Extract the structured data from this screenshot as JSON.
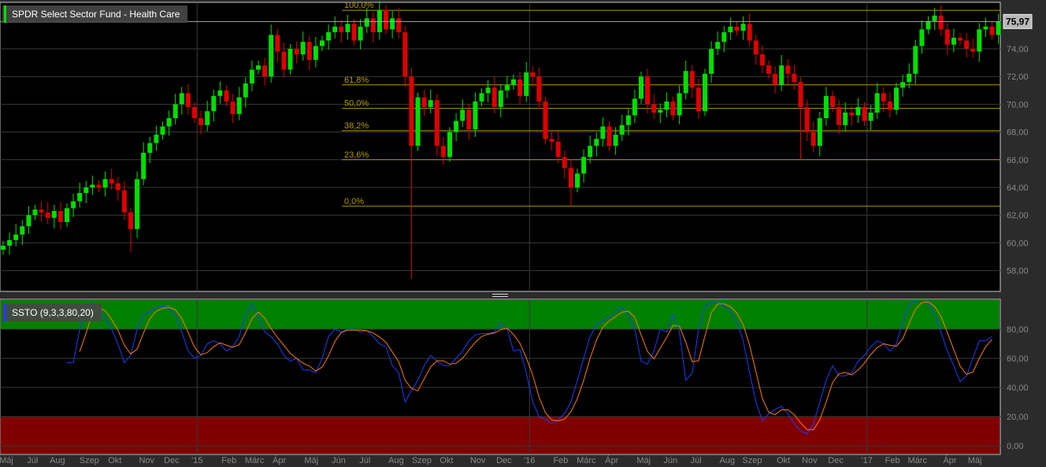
{
  "colors": {
    "up": "#00e000",
    "down": "#e00000",
    "k_line": "#1a3cff",
    "d_line": "#ff7a00",
    "overbought_zone": "#008000",
    "oversold_zone": "#800000",
    "fib": "#b39a00",
    "grid": "#3a3a3a",
    "axis_text": "#8a8a8a"
  },
  "price_panel": {
    "title": "SPDR Select Sector Fund - Health Care",
    "last_price_label": "75,97",
    "last_price": 75.97,
    "y_ticks": [
      {
        "v": 58,
        "label": "58,00"
      },
      {
        "v": 60,
        "label": "60,00"
      },
      {
        "v": 62,
        "label": "62,00"
      },
      {
        "v": 64,
        "label": "64,00"
      },
      {
        "v": 66,
        "label": "66,00"
      },
      {
        "v": 68,
        "label": "68,00"
      },
      {
        "v": 70,
        "label": "70,00"
      },
      {
        "v": 72,
        "label": "72,00"
      },
      {
        "v": 74,
        "label": "74,00"
      }
    ],
    "fib_levels": [
      {
        "label": "100,0%",
        "v": 76.78
      },
      {
        "label": "61,8%",
        "v": 71.4
      },
      {
        "label": "50,0%",
        "v": 69.7
      },
      {
        "label": "38,2%",
        "v": 68.1
      },
      {
        "label": "23,6%",
        "v": 66.0
      },
      {
        "label": "0,0%",
        "v": 62.64
      }
    ]
  },
  "oscillator_panel": {
    "title": "SSTO (9,3,3,80,20)",
    "y_ticks": [
      {
        "v": 0,
        "label": "0,00"
      },
      {
        "v": 20,
        "label": "20,00"
      },
      {
        "v": 40,
        "label": "40,00"
      },
      {
        "v": 60,
        "label": "60,00"
      },
      {
        "v": 80,
        "label": "80,00"
      }
    ],
    "overbought": 80,
    "oversold": 20
  },
  "x_axis": {
    "labels": [
      {
        "i": 0.5,
        "t": "Máj"
      },
      {
        "i": 4.6,
        "t": "Júl"
      },
      {
        "i": 8.5,
        "t": "Aug"
      },
      {
        "i": 13.5,
        "t": "Szep"
      },
      {
        "i": 17.5,
        "t": "Okt"
      },
      {
        "i": 22.5,
        "t": "Nov"
      },
      {
        "i": 26.4,
        "t": "Dec"
      },
      {
        "i": 30.4,
        "t": "'15"
      },
      {
        "i": 35.4,
        "t": "Feb"
      },
      {
        "i": 39.4,
        "t": "Márc"
      },
      {
        "i": 43.3,
        "t": "Ápr"
      },
      {
        "i": 48.3,
        "t": "Máj"
      },
      {
        "i": 52.6,
        "t": "Jún"
      },
      {
        "i": 56.7,
        "t": "Júl"
      },
      {
        "i": 61.6,
        "t": "Aug"
      },
      {
        "i": 65.6,
        "t": "Szep"
      },
      {
        "i": 69.5,
        "t": "Okt"
      },
      {
        "i": 74.4,
        "t": "Nov"
      },
      {
        "i": 78.5,
        "t": "Dec"
      },
      {
        "i": 82.5,
        "t": "'16"
      },
      {
        "i": 87.4,
        "t": "Feb"
      },
      {
        "i": 91.4,
        "t": "Márc"
      },
      {
        "i": 95.4,
        "t": "Ápr"
      },
      {
        "i": 100.4,
        "t": "Máj"
      },
      {
        "i": 104.6,
        "t": "Jún"
      },
      {
        "i": 108.6,
        "t": "Júl"
      },
      {
        "i": 113.5,
        "t": "Aug"
      },
      {
        "i": 117.4,
        "t": "Szep"
      },
      {
        "i": 122.3,
        "t": "Okt"
      },
      {
        "i": 126.4,
        "t": "Nov"
      },
      {
        "i": 130.5,
        "t": "Dec"
      },
      {
        "i": 135.4,
        "t": "'17"
      },
      {
        "i": 139.4,
        "t": "Feb"
      },
      {
        "i": 143.3,
        "t": "Márc"
      },
      {
        "i": 148.4,
        "t": "Ápr"
      },
      {
        "i": 152.3,
        "t": "Máj"
      }
    ],
    "year_lines": [
      30.4,
      82.5,
      135.4
    ]
  },
  "chart_data": {
    "type": "candlestick",
    "interval": "weekly",
    "first_open": 59.5,
    "close": [
      59.8,
      60.2,
      60.6,
      61.2,
      62.0,
      62.4,
      62.2,
      61.8,
      62.3,
      61.5,
      62.5,
      63.0,
      63.6,
      64.0,
      64.2,
      64.0,
      64.6,
      64.3,
      63.8,
      62.2,
      61.0,
      64.6,
      66.5,
      67.2,
      67.8,
      68.4,
      69.0,
      70.0,
      70.8,
      69.8,
      69.0,
      68.5,
      69.5,
      70.6,
      71.0,
      70.2,
      69.3,
      70.5,
      71.5,
      72.5,
      72.8,
      72.0,
      75.0,
      73.8,
      72.5,
      74.0,
      73.6,
      74.5,
      73.2,
      74.2,
      74.6,
      75.2,
      75.6,
      75.2,
      75.8,
      74.6,
      75.6,
      76.2,
      75.2,
      76.8,
      75.4,
      76.2,
      75.2,
      72.0,
      67.0,
      70.5,
      69.8,
      70.3,
      67.0,
      66.2,
      68.0,
      68.8,
      69.6,
      68.2,
      70.2,
      70.8,
      71.2,
      69.8,
      71.0,
      71.4,
      71.8,
      70.6,
      72.3,
      72.0,
      70.2,
      67.5,
      67.3,
      66.2,
      65.4,
      64.0,
      65.0,
      66.2,
      67.0,
      67.5,
      68.4,
      67.0,
      67.8,
      68.5,
      69.2,
      70.4,
      72.0,
      70.0,
      69.4,
      69.6,
      70.2,
      69.2,
      70.8,
      72.4,
      71.2,
      69.5,
      72.2,
      74.0,
      74.5,
      75.2,
      75.6,
      75.3,
      75.8,
      74.6,
      73.6,
      72.8,
      72.2,
      71.4,
      72.8,
      72.2,
      71.6,
      69.8,
      68.0,
      67.0,
      69.0,
      70.6,
      69.8,
      68.5,
      69.4,
      69.2,
      69.8,
      68.8,
      69.4,
      70.8,
      70.2,
      69.6,
      71.2,
      71.6,
      72.2,
      74.2,
      75.4,
      76.0,
      76.4,
      75.4,
      74.3,
      74.8,
      74.6,
      74.0,
      73.8,
      75.4,
      75.6,
      75.0,
      75.97
    ],
    "notable_lows": [
      {
        "i": 20,
        "low": 59.3
      },
      {
        "i": 64,
        "low": 57.4
      },
      {
        "i": 89,
        "low": 62.6
      },
      {
        "i": 125,
        "low": 66.0
      }
    ],
    "ylim": [
      57,
      77.1
    ],
    "stochastic": {
      "start_index": 10,
      "k": [
        57,
        57,
        80,
        95,
        98,
        92,
        88,
        80,
        70,
        57,
        62,
        80,
        90,
        92,
        95,
        96,
        94,
        90,
        78,
        65,
        60,
        62,
        70,
        72,
        70,
        65,
        68,
        75,
        90,
        97,
        88,
        78,
        75,
        70,
        62,
        58,
        60,
        52,
        52,
        50,
        60,
        75,
        80,
        78,
        80,
        80,
        78,
        79,
        75,
        70,
        68,
        55,
        50,
        30,
        38,
        45,
        55,
        62,
        58,
        55,
        55,
        60,
        65,
        72,
        76,
        77,
        77,
        78,
        84,
        80,
        65,
        66,
        50,
        30,
        20,
        18,
        15,
        18,
        22,
        30,
        45,
        60,
        75,
        83,
        86,
        88,
        92,
        95,
        90,
        80,
        58,
        56,
        65,
        80,
        78,
        90,
        78,
        45,
        50,
        80,
        96,
        98,
        98,
        96,
        92,
        85,
        72,
        50,
        30,
        17,
        22,
        25,
        27,
        22,
        15,
        10,
        8,
        15,
        30,
        45,
        55,
        48,
        48,
        50,
        58,
        62,
        68,
        72,
        70,
        65,
        70,
        85,
        97,
        99,
        99,
        98,
        90,
        78,
        65,
        55,
        44,
        48,
        60,
        72,
        72,
        75
      ],
      "ylim": [
        0,
        100
      ]
    }
  }
}
